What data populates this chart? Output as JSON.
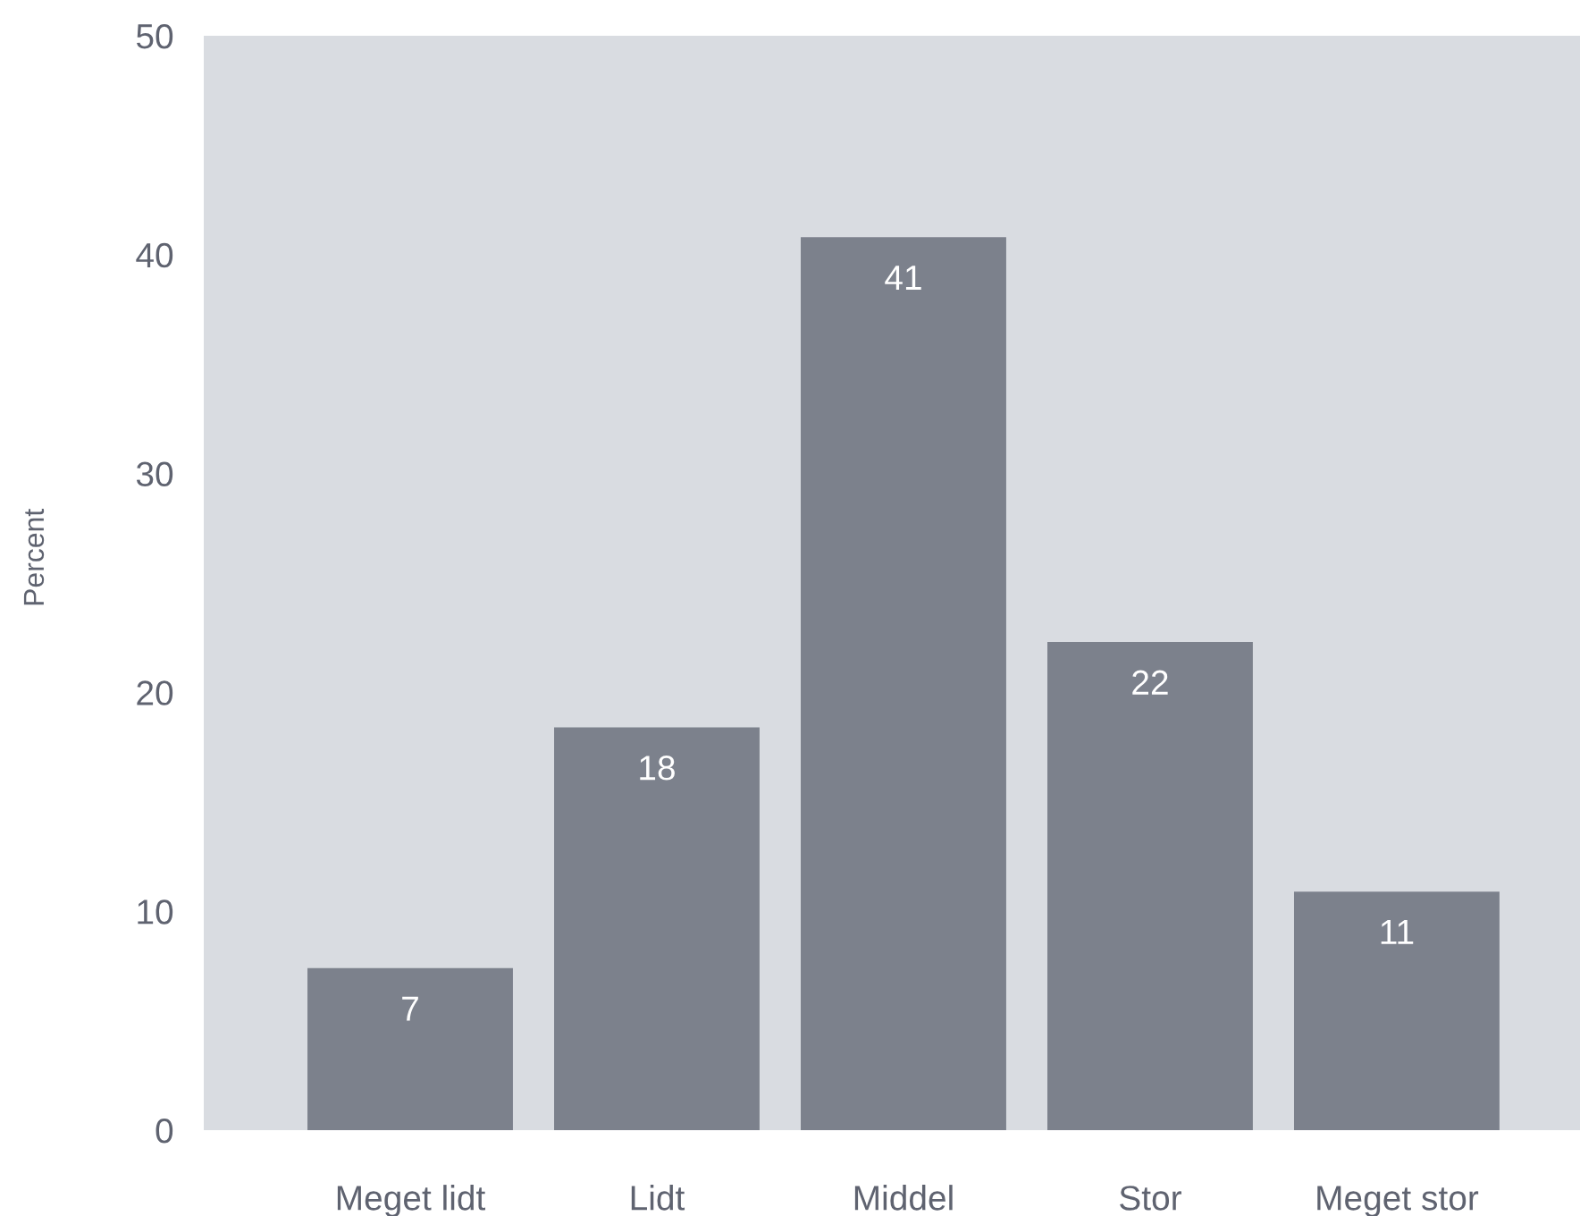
{
  "chart_data": {
    "type": "bar",
    "ylabel": "Percent",
    "categories": [
      "Meget lidt",
      "Lidt",
      "Middel",
      "Stor",
      "Meget stor"
    ],
    "values": [
      7.4,
      18.4,
      40.8,
      22.3,
      10.9
    ],
    "value_labels": [
      "7",
      "18",
      "41",
      "22",
      "11"
    ],
    "color": "#7c818c",
    "ylim": [
      0,
      50
    ],
    "yticks": [
      0,
      10,
      20,
      30,
      40,
      50
    ],
    "grid": false
  }
}
